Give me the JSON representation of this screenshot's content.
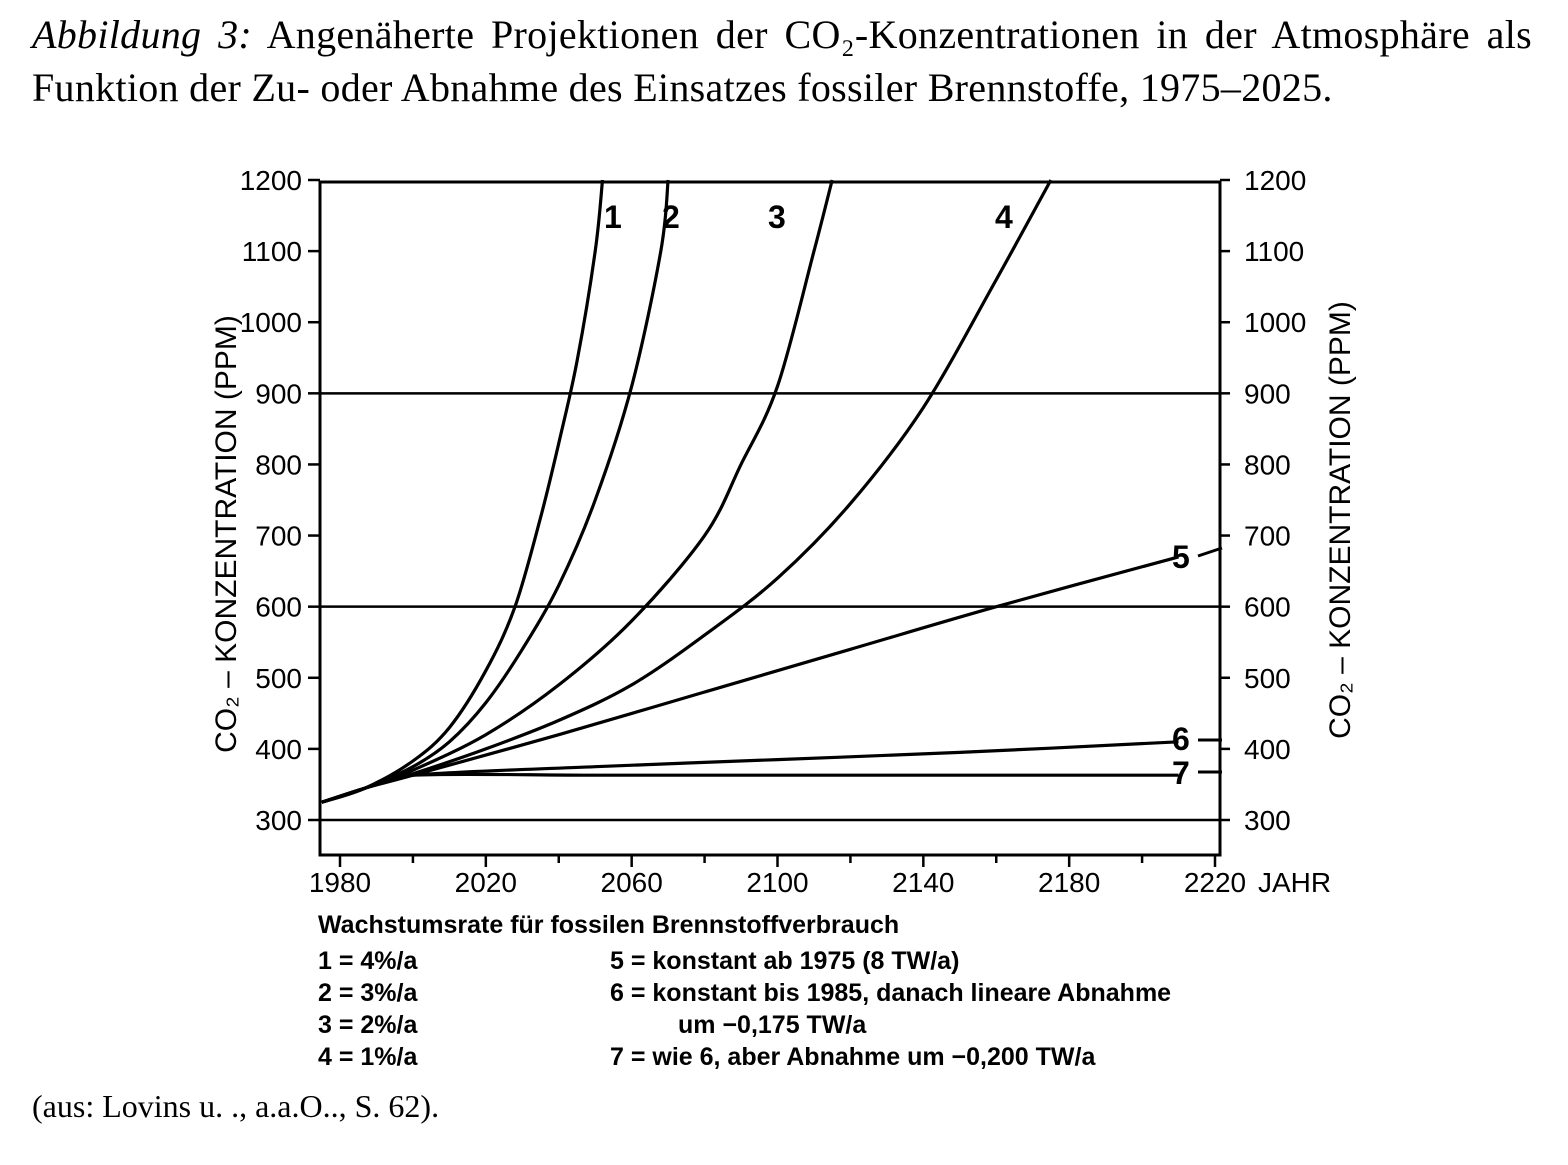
{
  "caption": {
    "lead": "Abbildung 3:",
    "text": "Angenäherte Projektionen der CO₂-Konzentrationen in der Atmosphäre als Funktion der Zu- oder Abnahme des Einsatzes fossiler Brennstoffe, 1975–2025."
  },
  "source": "(aus: Lovins u. ., a.a.O.., S. 62).",
  "chart_data": {
    "type": "line",
    "xlabel": "JAHR",
    "ylabel": "CO₂ – KONZENTRATION (PPM)",
    "xlim": [
      1965,
      2220
    ],
    "ylim": [
      250,
      1200
    ],
    "x_ticks": [
      1980,
      2020,
      2060,
      2100,
      2140,
      2180,
      2220
    ],
    "y_ticks": [
      300,
      400,
      500,
      600,
      700,
      800,
      900,
      1000,
      1100,
      1200
    ],
    "reference_lines": [
      600,
      900
    ],
    "grid": false,
    "legend_title": "Wachstumsrate für fossilen Brennstoffverbrauch",
    "legend_left": [
      "1 = 4%/a",
      "2 = 3%/a",
      "3 = 2%/a",
      "4 = 1%/a"
    ],
    "legend_right": [
      "5 = konstant ab 1975 (8 TW/a)",
      "6 = konstant bis 1985, danach lineare Abnahme",
      "um −0,175 TW/a",
      "7 = wie 6, aber Abnahme um −0,200 TW/a"
    ],
    "series": [
      {
        "name": "1",
        "x": [
          1975,
          1987,
          2000,
          2010,
          2020,
          2028,
          2035,
          2040,
          2045,
          2050,
          2052
        ],
        "y": [
          325,
          345,
          383,
          430,
          510,
          600,
          725,
          830,
          945,
          1100,
          1200
        ]
      },
      {
        "name": "2",
        "x": [
          1975,
          1987,
          2000,
          2010,
          2020,
          2030,
          2040,
          2050,
          2060,
          2068,
          2070
        ],
        "y": [
          325,
          345,
          375,
          410,
          465,
          540,
          630,
          750,
          910,
          1100,
          1200
        ]
      },
      {
        "name": "3",
        "x": [
          1975,
          1987,
          2000,
          2020,
          2040,
          2060,
          2080,
          2090,
          2100,
          2110,
          2115
        ],
        "y": [
          325,
          345,
          370,
          420,
          490,
          580,
          700,
          800,
          910,
          1100,
          1200
        ]
      },
      {
        "name": "4",
        "x": [
          1975,
          1987,
          2000,
          2020,
          2040,
          2060,
          2080,
          2100,
          2120,
          2140,
          2160,
          2175
        ],
        "y": [
          325,
          345,
          365,
          400,
          440,
          490,
          560,
          640,
          745,
          880,
          1060,
          1200
        ]
      },
      {
        "name": "5",
        "x": [
          1975,
          1987,
          2000,
          2040,
          2080,
          2120,
          2160,
          2210
        ],
        "y": [
          325,
          345,
          363,
          420,
          480,
          540,
          600,
          670
        ]
      },
      {
        "name": "6",
        "x": [
          1975,
          1987,
          2000,
          2050,
          2100,
          2150,
          2210
        ],
        "y": [
          325,
          345,
          363,
          375,
          385,
          395,
          410
        ]
      },
      {
        "name": "7",
        "x": [
          1975,
          1987,
          2000,
          2050,
          2100,
          2150,
          2210
        ],
        "y": [
          325,
          345,
          363,
          363,
          363,
          363,
          363
        ]
      }
    ]
  }
}
